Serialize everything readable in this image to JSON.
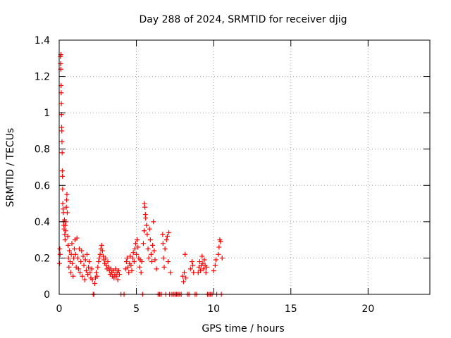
{
  "chart_data": {
    "type": "scatter",
    "title": "Day 288 of 2024, SRMTID for receiver djig",
    "xlabel": "GPS time / hours",
    "ylabel": "SRMTID / TECUs",
    "xlim": [
      0,
      24
    ],
    "ylim": [
      0,
      1.4
    ],
    "xticks": [
      0,
      5,
      10,
      15,
      20
    ],
    "yticks": [
      0,
      0.2,
      0.4,
      0.6,
      0.8,
      1,
      1.2,
      1.4
    ],
    "ytick_labels": [
      "0",
      "0.2",
      "0.4",
      "0.6",
      "0.8",
      "1",
      "1.2",
      "1.4"
    ],
    "grid": true,
    "marker": "+",
    "color": "#ff0000",
    "series": [
      {
        "name": "SRMTID",
        "points": [
          [
            0.02,
            0.17
          ],
          [
            0.04,
            0.25
          ],
          [
            0.06,
            0.22
          ],
          [
            0.08,
            1.31
          ],
          [
            0.09,
            1.27
          ],
          [
            0.1,
            1.24
          ],
          [
            0.11,
            1.32
          ],
          [
            0.12,
            1.15
          ],
          [
            0.13,
            1.11
          ],
          [
            0.14,
            1.05
          ],
          [
            0.15,
            0.99
          ],
          [
            0.16,
            0.92
          ],
          [
            0.17,
            0.9
          ],
          [
            0.18,
            0.84
          ],
          [
            0.19,
            0.78
          ],
          [
            0.2,
            0.68
          ],
          [
            0.21,
            0.65
          ],
          [
            0.22,
            0.58
          ],
          [
            0.23,
            0.5
          ],
          [
            0.25,
            0.47
          ],
          [
            0.27,
            0.45
          ],
          [
            0.28,
            0.4
          ],
          [
            0.3,
            0.38
          ],
          [
            0.32,
            0.36
          ],
          [
            0.34,
            0.41
          ],
          [
            0.36,
            0.33
          ],
          [
            0.38,
            0.3
          ],
          [
            0.4,
            0.38
          ],
          [
            0.42,
            0.35
          ],
          [
            0.44,
            0.4
          ],
          [
            0.46,
            0.48
          ],
          [
            0.48,
            0.52
          ],
          [
            0.5,
            0.55
          ],
          [
            0.52,
            0.45
          ],
          [
            0.55,
            0.32
          ],
          [
            0.58,
            0.27
          ],
          [
            0.6,
            0.2
          ],
          [
            0.63,
            0.15
          ],
          [
            0.66,
            0.24
          ],
          [
            0.7,
            0.18
          ],
          [
            0.74,
            0.12
          ],
          [
            0.78,
            0.22
          ],
          [
            0.82,
            0.28
          ],
          [
            0.86,
            0.17
          ],
          [
            0.9,
            0.1
          ],
          [
            0.94,
            0.2
          ],
          [
            0.98,
            0.25
          ],
          [
            1.02,
            0.3
          ],
          [
            1.06,
            0.22
          ],
          [
            1.1,
            0.15
          ],
          [
            1.15,
            0.31
          ],
          [
            1.2,
            0.2
          ],
          [
            1.25,
            0.14
          ],
          [
            1.3,
            0.25
          ],
          [
            1.35,
            0.12
          ],
          [
            1.4,
            0.18
          ],
          [
            1.45,
            0.24
          ],
          [
            1.5,
            0.1
          ],
          [
            1.55,
            0.21
          ],
          [
            1.6,
            0.16
          ],
          [
            1.65,
            0.08
          ],
          [
            1.7,
            0.19
          ],
          [
            1.75,
            0.13
          ],
          [
            1.8,
            0.22
          ],
          [
            1.85,
            0.11
          ],
          [
            1.9,
            0.15
          ],
          [
            1.95,
            0.18
          ],
          [
            2.0,
            0.12
          ],
          [
            2.05,
            0.09
          ],
          [
            2.1,
            0.14
          ],
          [
            2.15,
            0.08
          ],
          [
            2.2,
            0.0
          ],
          [
            2.25,
            0.0
          ],
          [
            2.3,
            0.06
          ],
          [
            2.35,
            0.09
          ],
          [
            2.4,
            0.12
          ],
          [
            2.45,
            0.1
          ],
          [
            2.5,
            0.15
          ],
          [
            2.55,
            0.18
          ],
          [
            2.6,
            0.2
          ],
          [
            2.65,
            0.22
          ],
          [
            2.7,
            0.25
          ],
          [
            2.75,
            0.27
          ],
          [
            2.8,
            0.24
          ],
          [
            2.85,
            0.21
          ],
          [
            2.9,
            0.19
          ],
          [
            2.95,
            0.17
          ],
          [
            3.0,
            0.2
          ],
          [
            3.05,
            0.16
          ],
          [
            3.1,
            0.14
          ],
          [
            3.15,
            0.18
          ],
          [
            3.2,
            0.15
          ],
          [
            3.25,
            0.13
          ],
          [
            3.3,
            0.11
          ],
          [
            3.35,
            0.14
          ],
          [
            3.4,
            0.12
          ],
          [
            3.45,
            0.1
          ],
          [
            3.5,
            0.13
          ],
          [
            3.55,
            0.09
          ],
          [
            3.6,
            0.11
          ],
          [
            3.65,
            0.14
          ],
          [
            3.7,
            0.1
          ],
          [
            3.75,
            0.12
          ],
          [
            3.8,
            0.08
          ],
          [
            3.85,
            0.13
          ],
          [
            3.9,
            0.11
          ],
          [
            4.0,
            0.0
          ],
          [
            4.2,
            0.0
          ],
          [
            4.3,
            0.14
          ],
          [
            4.35,
            0.18
          ],
          [
            4.4,
            0.2
          ],
          [
            4.45,
            0.15
          ],
          [
            4.5,
            0.12
          ],
          [
            4.55,
            0.17
          ],
          [
            4.6,
            0.21
          ],
          [
            4.65,
            0.16
          ],
          [
            4.7,
            0.13
          ],
          [
            4.75,
            0.2
          ],
          [
            4.8,
            0.23
          ],
          [
            4.85,
            0.18
          ],
          [
            4.9,
            0.25
          ],
          [
            4.95,
            0.28
          ],
          [
            5.0,
            0.22
          ],
          [
            5.05,
            0.3
          ],
          [
            5.1,
            0.26
          ],
          [
            5.15,
            0.2
          ],
          [
            5.2,
            0.15
          ],
          [
            5.25,
            0.19
          ],
          [
            5.3,
            0.12
          ],
          [
            5.35,
            0.18
          ],
          [
            5.4,
            0.0
          ],
          [
            5.45,
            0.28
          ],
          [
            5.5,
            0.35
          ],
          [
            5.52,
            0.5
          ],
          [
            5.55,
            0.48
          ],
          [
            5.58,
            0.44
          ],
          [
            5.6,
            0.42
          ],
          [
            5.65,
            0.38
          ],
          [
            5.7,
            0.33
          ],
          [
            5.75,
            0.25
          ],
          [
            5.8,
            0.2
          ],
          [
            5.85,
            0.36
          ],
          [
            5.9,
            0.3
          ],
          [
            5.95,
            0.22
          ],
          [
            6.0,
            0.18
          ],
          [
            6.05,
            0.27
          ],
          [
            6.1,
            0.4
          ],
          [
            6.15,
            0.24
          ],
          [
            6.2,
            0.19
          ],
          [
            6.3,
            0.14
          ],
          [
            6.4,
            0.0
          ],
          [
            6.5,
            0.0
          ],
          [
            6.6,
            0.0
          ],
          [
            6.7,
            0.33
          ],
          [
            6.72,
            0.28
          ],
          [
            6.75,
            0.2
          ],
          [
            6.8,
            0.15
          ],
          [
            6.85,
            0.25
          ],
          [
            6.9,
            0.0
          ],
          [
            6.95,
            0.3
          ],
          [
            7.0,
            0.32
          ],
          [
            7.05,
            0.18
          ],
          [
            7.1,
            0.34
          ],
          [
            7.15,
            0.0
          ],
          [
            7.2,
            0.12
          ],
          [
            7.3,
            0.0
          ],
          [
            7.4,
            0.0
          ],
          [
            7.5,
            0.0
          ],
          [
            7.6,
            0.0
          ],
          [
            7.7,
            0.0
          ],
          [
            7.8,
            0.0
          ],
          [
            7.9,
            0.0
          ],
          [
            8.0,
            0.1
          ],
          [
            8.05,
            0.07
          ],
          [
            8.1,
            0.12
          ],
          [
            8.15,
            0.22
          ],
          [
            8.2,
            0.09
          ],
          [
            8.3,
            0.0
          ],
          [
            8.4,
            0.0
          ],
          [
            8.5,
            0.14
          ],
          [
            8.6,
            0.18
          ],
          [
            8.65,
            0.16
          ],
          [
            8.7,
            0.12
          ],
          [
            8.8,
            0.0
          ],
          [
            8.9,
            0.0
          ],
          [
            9.0,
            0.12
          ],
          [
            9.05,
            0.15
          ],
          [
            9.1,
            0.18
          ],
          [
            9.15,
            0.13
          ],
          [
            9.2,
            0.16
          ],
          [
            9.25,
            0.21
          ],
          [
            9.3,
            0.17
          ],
          [
            9.35,
            0.14
          ],
          [
            9.4,
            0.19
          ],
          [
            9.45,
            0.16
          ],
          [
            9.5,
            0.12
          ],
          [
            9.55,
            0.15
          ],
          [
            9.6,
            0.0
          ],
          [
            9.7,
            0.0
          ],
          [
            9.8,
            0.0
          ],
          [
            9.9,
            0.0
          ],
          [
            10.0,
            0.13
          ],
          [
            10.1,
            0.16
          ],
          [
            10.15,
            0.19
          ],
          [
            10.2,
            0.0
          ],
          [
            10.3,
            0.22
          ],
          [
            10.35,
            0.26
          ],
          [
            10.4,
            0.3
          ],
          [
            10.45,
            0.29
          ],
          [
            10.5,
            0.0
          ],
          [
            10.55,
            0.2
          ]
        ]
      }
    ]
  }
}
